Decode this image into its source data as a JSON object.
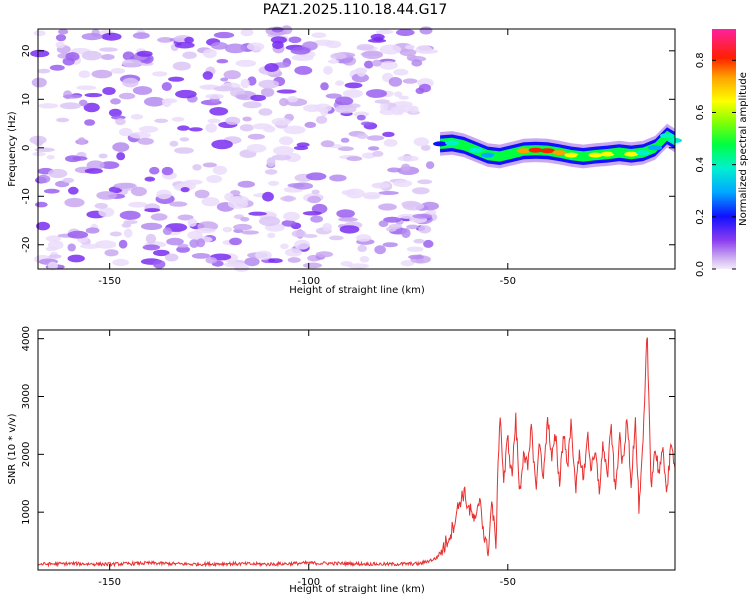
{
  "title": "PAZ1.2025.110.18.44.G17",
  "chart_data": [
    {
      "type": "heatmap",
      "xlabel": "Height of straight line (km)",
      "ylabel": "Frequency (Hz)",
      "xlim": [
        -168,
        -8
      ],
      "ylim": [
        -25,
        24.5
      ],
      "xticks": [
        -150,
        -100,
        -50
      ],
      "yticks": [
        -20,
        -10,
        0,
        10,
        20
      ],
      "colorbar": {
        "label": "Normalized spectral amplitude",
        "range": [
          0,
          0.92
        ],
        "ticks": [
          0.0,
          0.2,
          0.4,
          0.6,
          0.8
        ]
      },
      "ridge": {
        "description_height_km": [
          -67,
          -64,
          -61,
          -58,
          -55,
          -52,
          -49,
          -46,
          -43,
          -40,
          -37,
          -34,
          -31,
          -28,
          -25,
          -22,
          -19,
          -16,
          -13,
          -10,
          -8
        ],
        "frequency_hz": [
          0.8,
          1.0,
          0.5,
          -0.5,
          -1.5,
          -1.8,
          -1.2,
          -0.6,
          -0.5,
          -0.6,
          -1.0,
          -1.5,
          -1.8,
          -1.5,
          -1.3,
          -1.0,
          -1.3,
          -1.0,
          0.0,
          2.5,
          1.5
        ],
        "amplitude": [
          0.3,
          0.45,
          0.55,
          0.5,
          0.4,
          0.55,
          0.6,
          0.75,
          0.85,
          0.9,
          0.8,
          0.7,
          0.55,
          0.65,
          0.7,
          0.6,
          0.65,
          0.5,
          0.4,
          0.45,
          0.5
        ]
      },
      "noise_region_km": [
        -168,
        -69
      ]
    },
    {
      "type": "line",
      "xlabel": "Height of straight line (km)",
      "ylabel": "SNR (10 * v/v)",
      "xlim": [
        -168,
        -8
      ],
      "ylim": [
        0,
        4150
      ],
      "xticks": [
        -150,
        -100,
        -50
      ],
      "yticks": [
        1000,
        2000,
        3000,
        4000
      ],
      "series": [
        {
          "color": "#e83030",
          "x": [
            -168,
            -160,
            -150,
            -140,
            -130,
            -120,
            -110,
            -100,
            -90,
            -80,
            -72,
            -68,
            -66,
            -64,
            -62,
            -61,
            -60,
            -58,
            -57,
            -56,
            -55,
            -54,
            -53,
            -52,
            -51,
            -50,
            -49,
            -48,
            -47,
            -46,
            -45,
            -44,
            -43,
            -42,
            -41,
            -40,
            -39,
            -38,
            -37,
            -36,
            -35,
            -34,
            -33,
            -32,
            -31,
            -30,
            -29,
            -28,
            -27,
            -26,
            -25,
            -24,
            -23,
            -22,
            -21,
            -20,
            -19,
            -18,
            -17,
            -16,
            -15,
            -14,
            -13,
            -12,
            -11,
            -10,
            -9,
            -8
          ],
          "y": [
            100,
            110,
            100,
            120,
            100,
            110,
            100,
            120,
            110,
            100,
            110,
            200,
            400,
            700,
            1200,
            1350,
            1100,
            800,
            1300,
            600,
            300,
            1200,
            400,
            2800,
            1500,
            2300,
            1600,
            2600,
            1300,
            2100,
            1700,
            2500,
            1400,
            2200,
            1600,
            2700,
            1900,
            2300,
            1500,
            2400,
            1800,
            2600,
            1300,
            2100,
            1500,
            2400,
            1700,
            2000,
            1400,
            2200,
            1600,
            2500,
            1300,
            2300,
            1800,
            2700,
            1500,
            2600,
            1000,
            2200,
            4100,
            1500,
            2100,
            1700,
            2000,
            1400,
            2100,
            1900
          ]
        }
      ]
    }
  ]
}
